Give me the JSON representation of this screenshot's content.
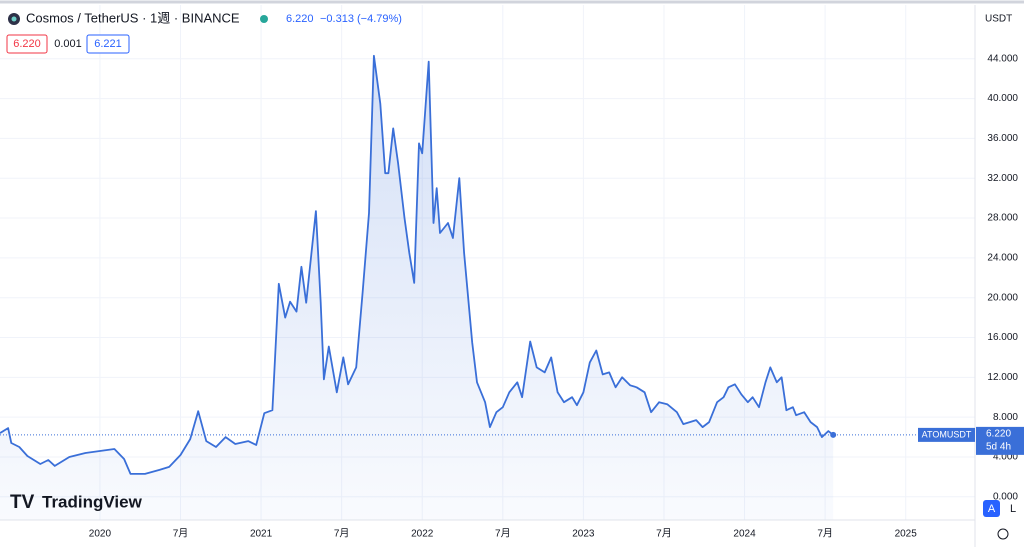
{
  "header": {
    "symbol": "Cosmos / TetherUS · 1週 · BINANCE",
    "price": "6.220",
    "change": "−0.313 (−4.79%)",
    "quotes": [
      "6.220",
      "0.001",
      "6.221"
    ],
    "currency": "USDT"
  },
  "logo": "TradingView",
  "buttons": [
    "A",
    "L"
  ],
  "countdown": "5d 4h",
  "chart_data": {
    "type": "line",
    "x": [
      2019.38,
      2019.43,
      2019.45,
      2019.5,
      2019.55,
      2019.63,
      2019.68,
      2019.72,
      2019.81,
      2019.91,
      2020.0,
      2020.09,
      2020.15,
      2020.19,
      2020.28,
      2020.37,
      2020.43,
      2020.5,
      2020.56,
      2020.61,
      2020.66,
      2020.72,
      2020.78,
      2020.84,
      2020.92,
      2020.97,
      2021.02,
      2021.07,
      2021.11,
      2021.15,
      2021.18,
      2021.22,
      2021.25,
      2021.28,
      2021.34,
      2021.37,
      2021.39,
      2021.42,
      2021.47,
      2021.51,
      2021.54,
      2021.59,
      2021.63,
      2021.67,
      2021.7,
      2021.74,
      2021.77,
      2021.79,
      2021.82,
      2021.85,
      2021.89,
      2021.92,
      2021.95,
      2021.98,
      2022.0,
      2022.04,
      2022.07,
      2022.09,
      2022.11,
      2022.16,
      2022.19,
      2022.23,
      2022.26,
      2022.31,
      2022.34,
      2022.39,
      2022.42,
      2022.46,
      2022.5,
      2022.54,
      2022.59,
      2022.62,
      2022.67,
      2022.71,
      2022.76,
      2022.8,
      2022.84,
      2022.88,
      2022.93,
      2022.96,
      2023.0,
      2023.04,
      2023.08,
      2023.12,
      2023.16,
      2023.2,
      2023.24,
      2023.29,
      2023.33,
      2023.38,
      2023.42,
      2023.47,
      2023.52,
      2023.58,
      2023.62,
      2023.66,
      2023.7,
      2023.74,
      2023.78,
      2023.83,
      2023.87,
      2023.9,
      2023.94,
      2023.98,
      2024.02,
      2024.05,
      2024.09,
      2024.13,
      2024.16,
      2024.2,
      2024.23,
      2024.26,
      2024.3,
      2024.32,
      2024.37,
      2024.41,
      2024.45,
      2024.48,
      2024.52,
      2024.55
    ],
    "series": [
      {
        "name": "ATOMUSDT",
        "color": "#3a6fd8",
        "values": [
          6.4,
          6.9,
          5.4,
          5.0,
          4.1,
          3.3,
          3.7,
          3.1,
          4.0,
          4.4,
          4.6,
          4.8,
          3.8,
          2.3,
          2.3,
          2.7,
          3.0,
          4.2,
          5.8,
          8.6,
          5.6,
          5.0,
          6.0,
          5.3,
          5.6,
          5.2,
          8.4,
          8.7,
          21.4,
          18.0,
          19.6,
          18.6,
          23.1,
          19.5,
          28.7,
          19.5,
          11.8,
          15.1,
          10.5,
          14.0,
          11.3,
          13.0,
          20.5,
          28.5,
          44.3,
          39.5,
          32.5,
          32.5,
          37.0,
          33.5,
          28.0,
          24.5,
          21.5,
          35.5,
          34.5,
          43.7,
          27.5,
          31.0,
          26.5,
          27.5,
          26.0,
          32.0,
          24.5,
          15.5,
          11.5,
          9.5,
          7.0,
          8.5,
          9.0,
          10.5,
          11.5,
          10.0,
          15.6,
          13.0,
          12.5,
          14.0,
          10.5,
          9.5,
          10.0,
          9.2,
          10.5,
          13.5,
          14.7,
          12.3,
          12.5,
          11.0,
          12.0,
          11.2,
          11.0,
          10.5,
          8.5,
          9.5,
          9.3,
          8.5,
          7.3,
          7.5,
          7.7,
          7.0,
          7.5,
          9.5,
          10.0,
          11.0,
          11.3,
          10.3,
          9.5,
          10.0,
          9.0,
          11.5,
          13.0,
          11.5,
          12.0,
          8.7,
          9.0,
          8.2,
          8.5,
          7.5,
          7.0,
          6.0,
          6.6,
          6.22
        ]
      }
    ],
    "last_price": {
      "value": 6.22,
      "label": "6.220"
    },
    "xlim": [
      2019.38,
      2025.43
    ],
    "ylim": [
      -2.33,
      49.4
    ],
    "xticks": [
      {
        "value": 2020,
        "label": "2020"
      },
      {
        "value": 2020.5,
        "label": "7月"
      },
      {
        "value": 2021,
        "label": "2021"
      },
      {
        "value": 2021.5,
        "label": "7月"
      },
      {
        "value": 2022,
        "label": "2022"
      },
      {
        "value": 2022.5,
        "label": "7月"
      },
      {
        "value": 2023,
        "label": "2023"
      },
      {
        "value": 2023.5,
        "label": "7月"
      },
      {
        "value": 2024,
        "label": "2024"
      },
      {
        "value": 2024.5,
        "label": "7月"
      },
      {
        "value": 2025,
        "label": "2025"
      }
    ],
    "yticks": [
      {
        "value": 0,
        "label": "0.000"
      },
      {
        "value": 4,
        "label": "4.000"
      },
      {
        "value": 8,
        "label": "8.000"
      },
      {
        "value": 12,
        "label": "12.000"
      },
      {
        "value": 16,
        "label": "16.000"
      },
      {
        "value": 20,
        "label": "20.000"
      },
      {
        "value": 24,
        "label": "24.000"
      },
      {
        "value": 28,
        "label": "28.000"
      },
      {
        "value": 32,
        "label": "32.000"
      },
      {
        "value": 36,
        "label": "36.000"
      },
      {
        "value": 40,
        "label": "40.000"
      },
      {
        "value": 44,
        "label": "44.000"
      }
    ],
    "grid": true
  }
}
